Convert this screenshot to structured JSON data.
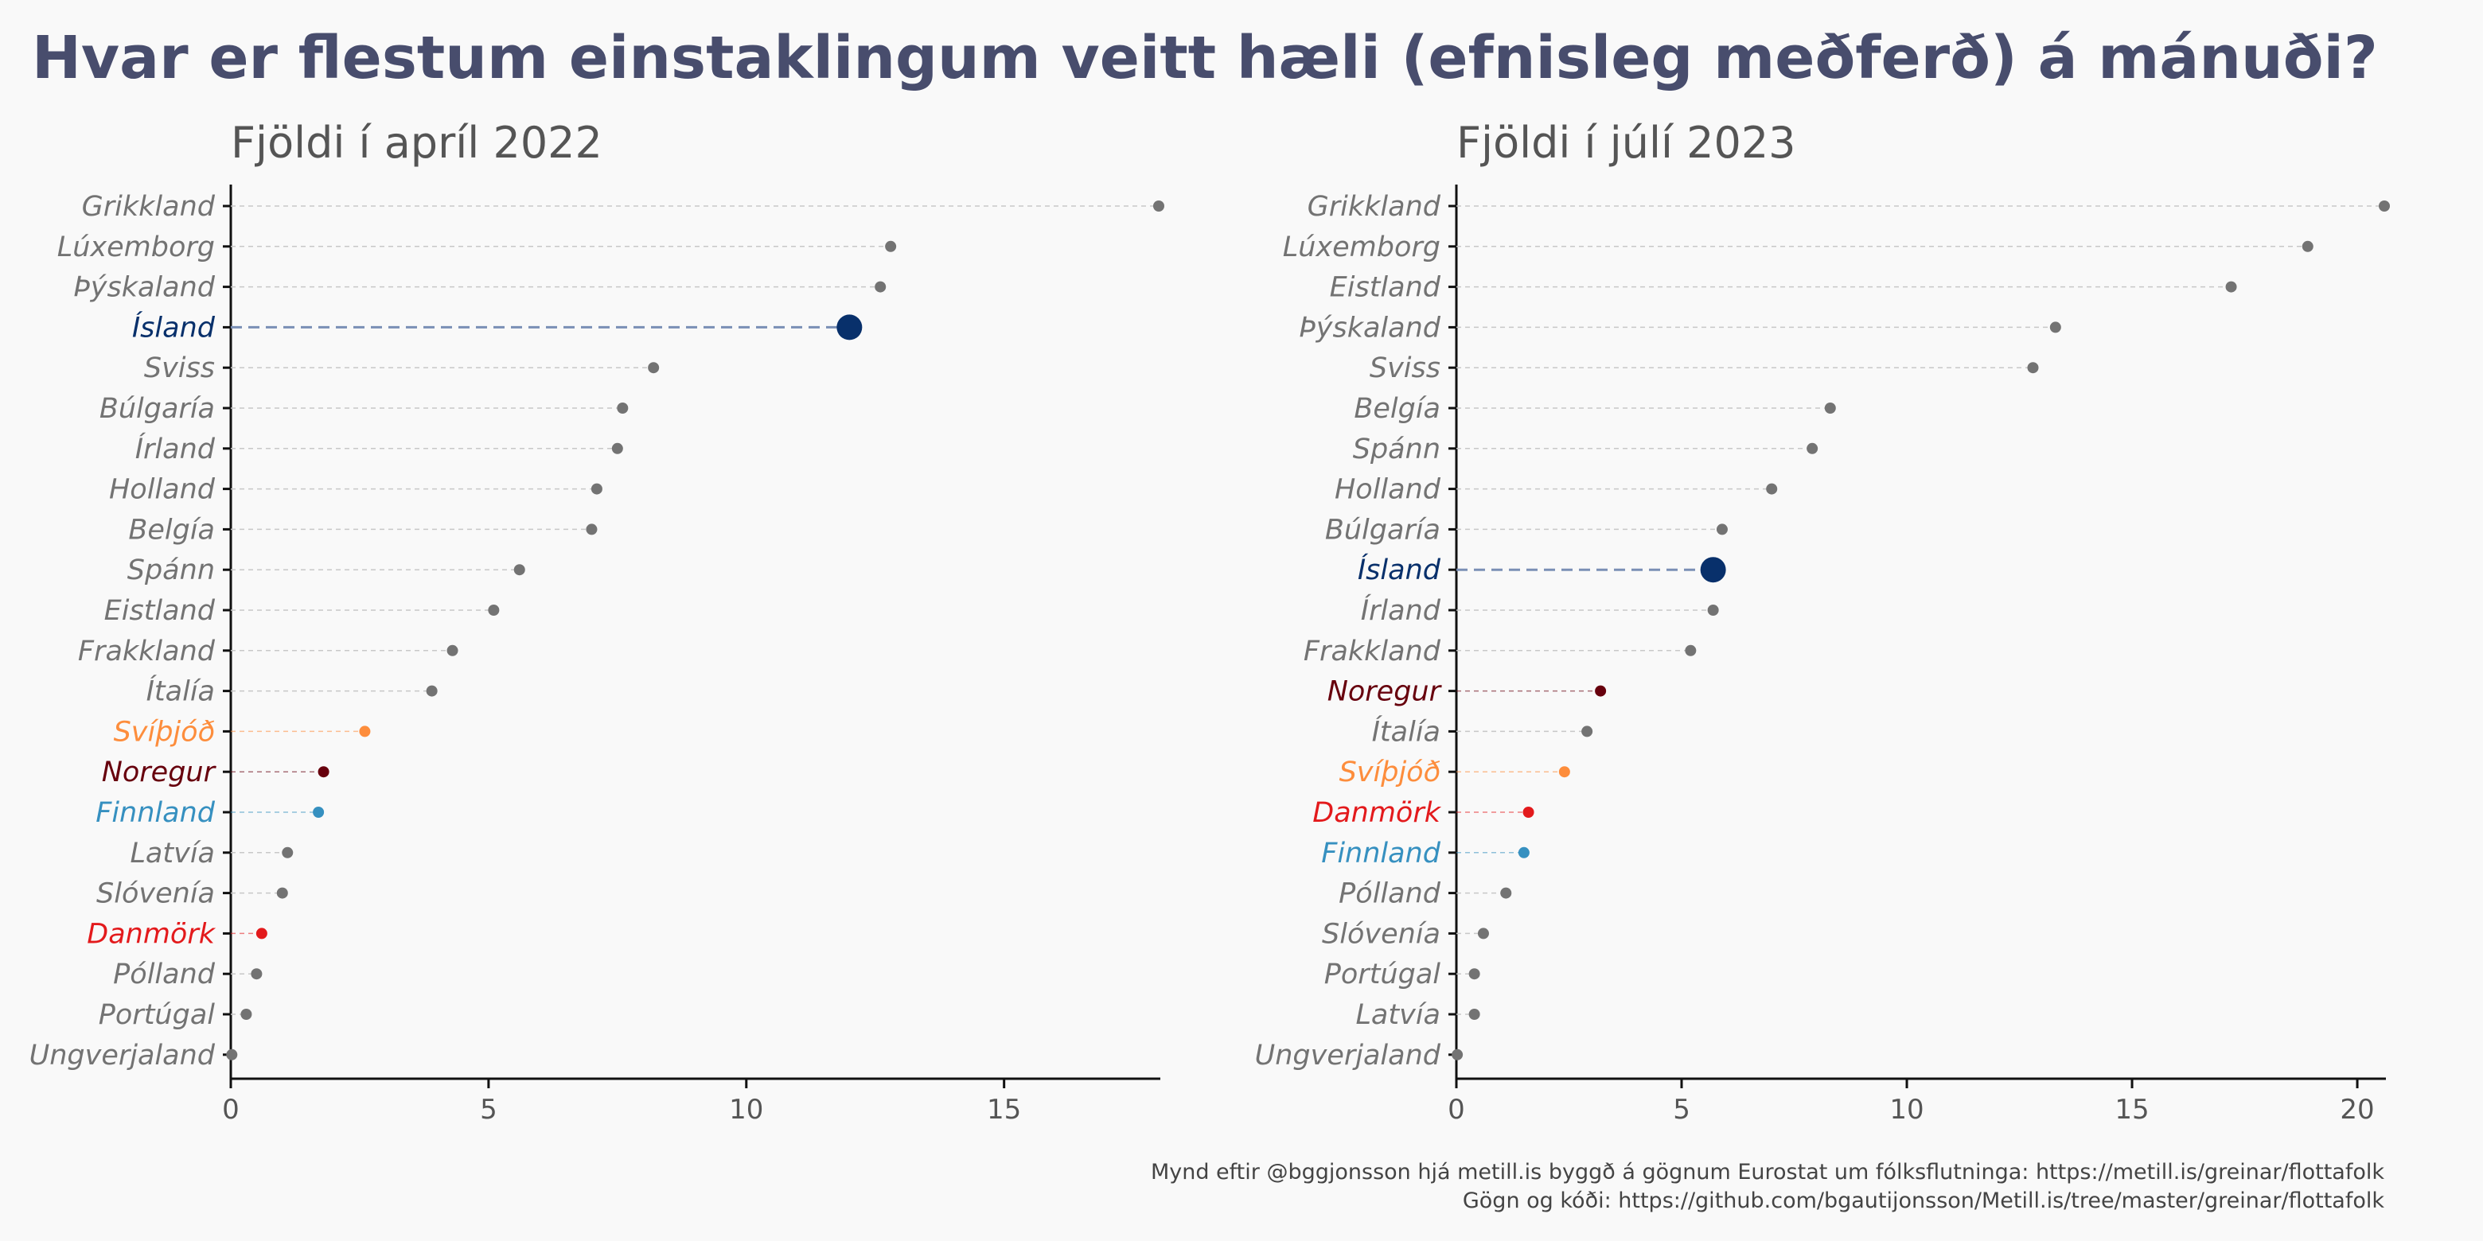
{
  "title": "Hvar er flestum einstaklingum veitt hæli (efnisleg meðferð) á mánuði?",
  "caption": {
    "line1": "Mynd eftir @bggjonsson hjá metill.is byggð á gögnum Eurostat um fólksflutninga: https://metill.is/greinar/flottafolk",
    "line2": "Gögn og kóði: https://github.com/bgautijonsson/Metill.is/tree/master/greinar/flottafolk"
  },
  "colors": {
    "default": "#737373",
    "Ísland": "#08306b",
    "Svíþjóð": "#fd8d3c",
    "Noregur": "#67000d",
    "Finnland": "#3690c0",
    "Danmörk": "#e31a1c"
  },
  "chart_data": [
    {
      "type": "scatter",
      "subtitle": "Fjöldi í apríl 2022",
      "xlim": [
        0,
        18
      ],
      "xticks": [
        0,
        5,
        10,
        15
      ],
      "grid": false,
      "categories": [
        "Grikkland",
        "Lúxemborg",
        "Þýskaland",
        "Ísland",
        "Sviss",
        "Búlgaría",
        "Írland",
        "Holland",
        "Belgía",
        "Spánn",
        "Eistland",
        "Frakkland",
        "Ítalía",
        "Svíþjóð",
        "Noregur",
        "Finnland",
        "Latvía",
        "Slóvenía",
        "Danmörk",
        "Pólland",
        "Portúgal",
        "Ungverjaland"
      ],
      "values": [
        18.0,
        12.8,
        12.6,
        12.0,
        8.2,
        7.6,
        7.5,
        7.1,
        7.0,
        5.6,
        5.1,
        4.3,
        3.9,
        2.6,
        1.8,
        1.7,
        1.1,
        1.0,
        0.6,
        0.5,
        0.3,
        0.02
      ]
    },
    {
      "type": "scatter",
      "subtitle": "Fjöldi í júlí 2023",
      "xlim": [
        0,
        20.6
      ],
      "xticks": [
        0,
        5,
        10,
        15,
        20
      ],
      "grid": false,
      "categories": [
        "Grikkland",
        "Lúxemborg",
        "Eistland",
        "Þýskaland",
        "Sviss",
        "Belgía",
        "Spánn",
        "Holland",
        "Búlgaría",
        "Ísland",
        "Írland",
        "Frakkland",
        "Noregur",
        "Ítalía",
        "Svíþjóð",
        "Danmörk",
        "Finnland",
        "Pólland",
        "Slóvenía",
        "Portúgal",
        "Latvía",
        "Ungverjaland"
      ],
      "values": [
        20.6,
        18.9,
        17.2,
        13.3,
        12.8,
        8.3,
        7.9,
        7.0,
        5.9,
        5.7,
        5.7,
        5.2,
        3.2,
        2.9,
        2.4,
        1.6,
        1.5,
        1.1,
        0.6,
        0.4,
        0.4,
        0.02
      ]
    }
  ]
}
